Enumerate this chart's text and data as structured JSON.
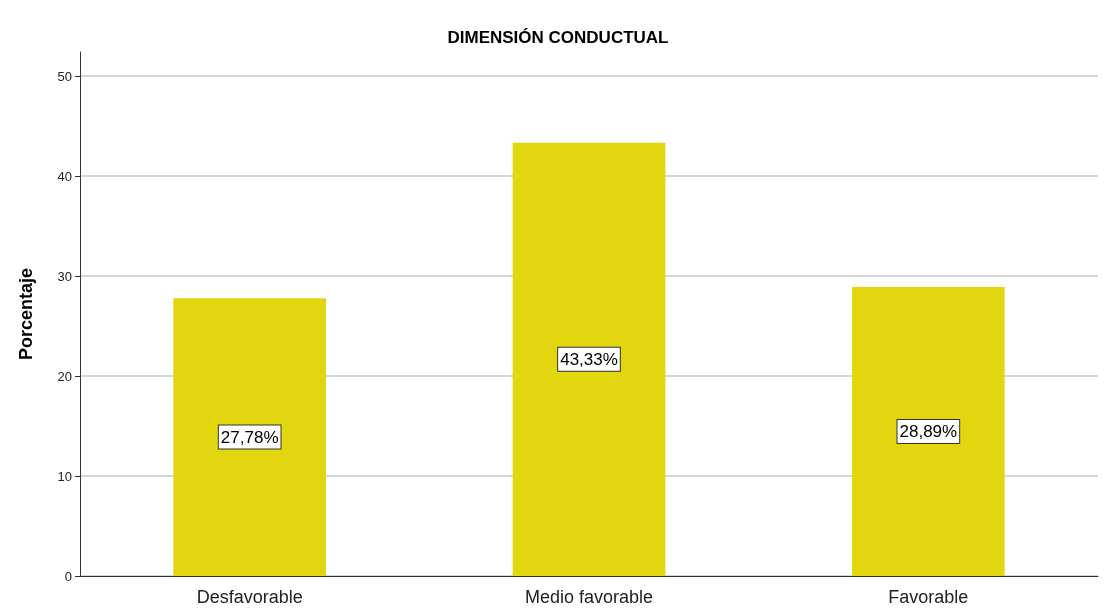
{
  "chart_data": {
    "type": "bar",
    "title": "DIMENSIÓN CONDUCTUAL",
    "ylabel": "Porcentaje",
    "categories": [
      "Desfavorable",
      "Medio favorable",
      "Favorable"
    ],
    "values": [
      27.78,
      43.33,
      28.89
    ],
    "value_labels": [
      "27,78%",
      "43,33%",
      "28,89%"
    ],
    "color": "#e2d70f",
    "ylim": [
      0,
      52.4
    ],
    "yticks": [
      0,
      10,
      20,
      30,
      40,
      50
    ],
    "grid": "y"
  }
}
